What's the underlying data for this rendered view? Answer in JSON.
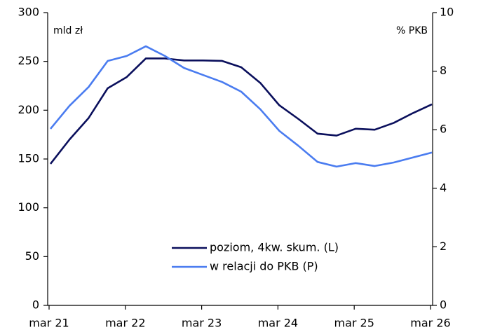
{
  "chart_data": {
    "type": "line",
    "y_label": "mld zł",
    "y2_label": "% PKB",
    "categories": [
      "mar 21",
      null,
      null,
      null,
      "mar 22",
      null,
      null,
      null,
      "mar 23",
      null,
      null,
      null,
      "mar 24",
      null,
      null,
      null,
      "mar 25",
      null,
      null,
      null,
      "mar 26"
    ],
    "series": [
      {
        "name": "poziom, 4kw. skum. (L)",
        "color": "#0a0f5c",
        "axis": "y",
        "values": [
          145,
          170,
          192,
          222.5,
          234,
          253,
          253,
          251,
          251,
          250.5,
          244,
          228,
          205,
          191,
          176,
          174,
          181,
          180,
          187,
          197,
          206
        ]
      },
      {
        "name": "w relacji do PKB (P)",
        "color": "#4a7cf0",
        "axis": "y2",
        "values": [
          6.03,
          6.82,
          7.46,
          8.35,
          8.52,
          8.85,
          8.52,
          8.11,
          7.87,
          7.63,
          7.3,
          6.7,
          5.96,
          5.45,
          4.9,
          4.74,
          4.86,
          4.76,
          4.88,
          5.05,
          5.22
        ]
      }
    ],
    "ylim": [
      0,
      300
    ],
    "yticks": [
      0,
      50,
      100,
      150,
      200,
      250,
      300
    ],
    "y2lim": [
      0,
      10
    ],
    "y2ticks": [
      0,
      2,
      4,
      6,
      8,
      10
    ],
    "grid": false,
    "legend": "lower right"
  }
}
